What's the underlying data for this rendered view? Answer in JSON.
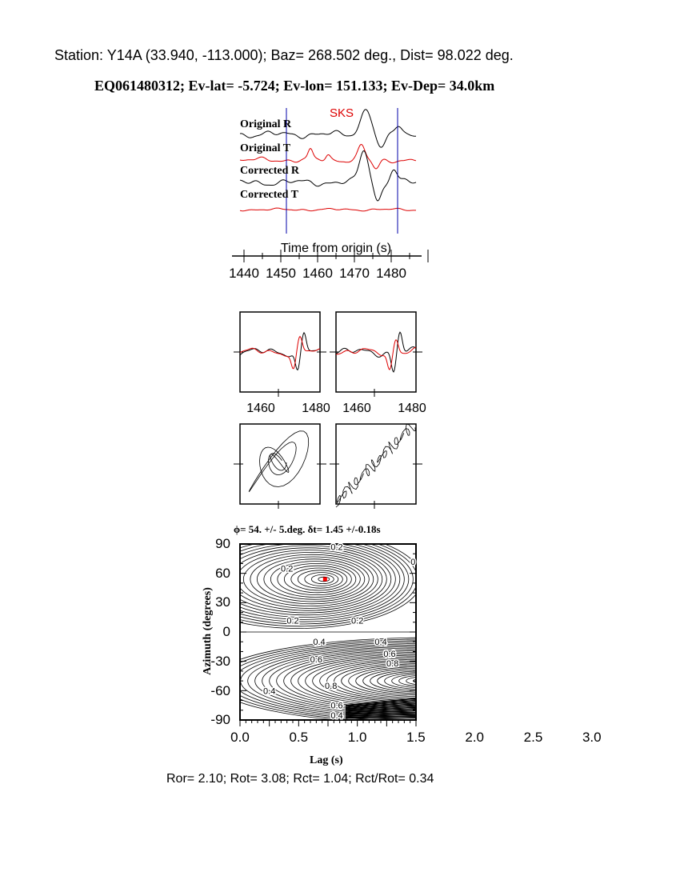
{
  "header": {
    "station_line": "Station: Y14A (33.940, -113.000); Baz=  268.502 deg., Dist=   98.022 deg.",
    "event_line": "EQ061480312; Ev-lat=  -5.724; Ev-lon= 151.133; Ev-Dep= 34.0km"
  },
  "colors": {
    "trace_r": "#000000",
    "trace_t": "#dd0000",
    "window": "#0000aa",
    "best_fit": "#ff0000"
  },
  "chart_data": [
    {
      "type": "line",
      "phase_label": "SKS",
      "trace_labels": [
        "Original R",
        "Original T",
        "Corrected R",
        "Corrected T"
      ],
      "xlabel": "Time from origin (s)",
      "xticks": [
        "1440",
        "1450",
        "1460",
        "1470",
        "1480"
      ],
      "xlim": [
        1437,
        1487
      ],
      "window": [
        1452.5,
        1482.5
      ]
    },
    {
      "type": "line",
      "panels": [
        "original waveforms",
        "corrected waveforms"
      ],
      "xticks": [
        "1460",
        "1480"
      ]
    },
    {
      "type": "scatter",
      "panels": [
        "particle motion original",
        "particle motion corrected"
      ]
    },
    {
      "type": "heatmap",
      "title": "ϕ= 54. +/- 5.deg. δt= 1.45 +/-0.18s",
      "xlabel": "Lag (s)",
      "ylabel": "Azimuth (degrees)",
      "xlim": [
        0,
        3
      ],
      "ylim": [
        -90,
        90
      ],
      "xticks": [
        "0.0",
        "0.5",
        "1.0",
        "1.5",
        "2.0",
        "2.5",
        "3.0"
      ],
      "yticks": [
        "90",
        "60",
        "30",
        "0",
        "-30",
        "-60",
        "-90"
      ],
      "contour_labels": [
        "0.2",
        "0.2",
        "0",
        "0.2",
        "0.2",
        "0.4",
        "0.4",
        "0.6",
        "0.6",
        "0.8",
        "0.8",
        "0.4",
        "0.6",
        "0.4"
      ],
      "best": {
        "lag": 1.45,
        "azimuth": 54
      }
    }
  ],
  "footer": {
    "ratios": "Ror= 2.10; Rot= 3.08; Rct= 1.04; Rct/Rot= 0.34"
  }
}
